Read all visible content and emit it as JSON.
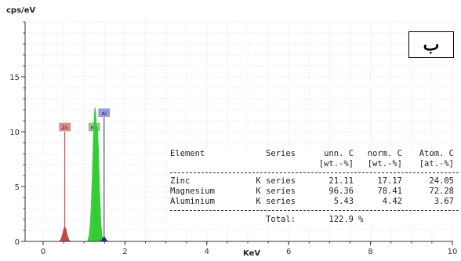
{
  "chart_data": {
    "type": "line",
    "ylabel": "cps/eV",
    "xlabel": "KeV",
    "xlim": [
      -0.5,
      10
    ],
    "ylim": [
      0,
      20
    ],
    "xticks": [
      0,
      2,
      4,
      6,
      8,
      10
    ],
    "yticks": [
      0,
      5,
      10,
      15
    ],
    "panel_label": "ب",
    "grid": true,
    "series": [
      {
        "peaks": [
          {
            "element": "Zn",
            "energy": 0.53,
            "height": 1.3,
            "width": 0.05,
            "color": "#c04040"
          },
          {
            "element": "Mg",
            "energy": 1.27,
            "height": 12.2,
            "width": 0.06,
            "color": "#33cc33"
          },
          {
            "element": "Mg",
            "energy": 1.32,
            "height": 10.5,
            "width": 0.05,
            "color": "#33cc33"
          },
          {
            "element": "Al",
            "energy": 1.49,
            "height": 0.4,
            "width": 0.04,
            "color": "#2020a0"
          }
        ]
      }
    ],
    "element_markers": [
      {
        "label": "Zn",
        "energy": 0.53,
        "height": 10.0,
        "color": "#e88a8a",
        "line_color": "#cc3333"
      },
      {
        "label": "Mg",
        "energy": 1.25,
        "height": 10.0,
        "color": "#8fd08f",
        "line_color": "#2f8f2f"
      },
      {
        "label": "Al",
        "energy": 1.49,
        "height": 11.3,
        "color": "#9a9ae8",
        "line_color": "#333366"
      }
    ],
    "table": {
      "headers": [
        "Element",
        "Series",
        "unn. C",
        "norm. C",
        "Atom. C"
      ],
      "units": [
        "",
        "",
        "[wt.-%]",
        "[wt.-%]",
        "[at.-%]"
      ],
      "rows": [
        {
          "element": "Zinc",
          "series": "K series",
          "unn": "21.11",
          "norm": "17.17",
          "atom": "24.05"
        },
        {
          "element": "Magnesium",
          "series": "K series",
          "unn": "96.36",
          "norm": "78.41",
          "atom": "72.28"
        },
        {
          "element": "Aluminium",
          "series": "K series",
          "unn": "5.43",
          "norm": "4.42",
          "atom": "3.67"
        }
      ],
      "total_label": "Total:",
      "total_value": "122.9",
      "total_unit": "%"
    }
  }
}
